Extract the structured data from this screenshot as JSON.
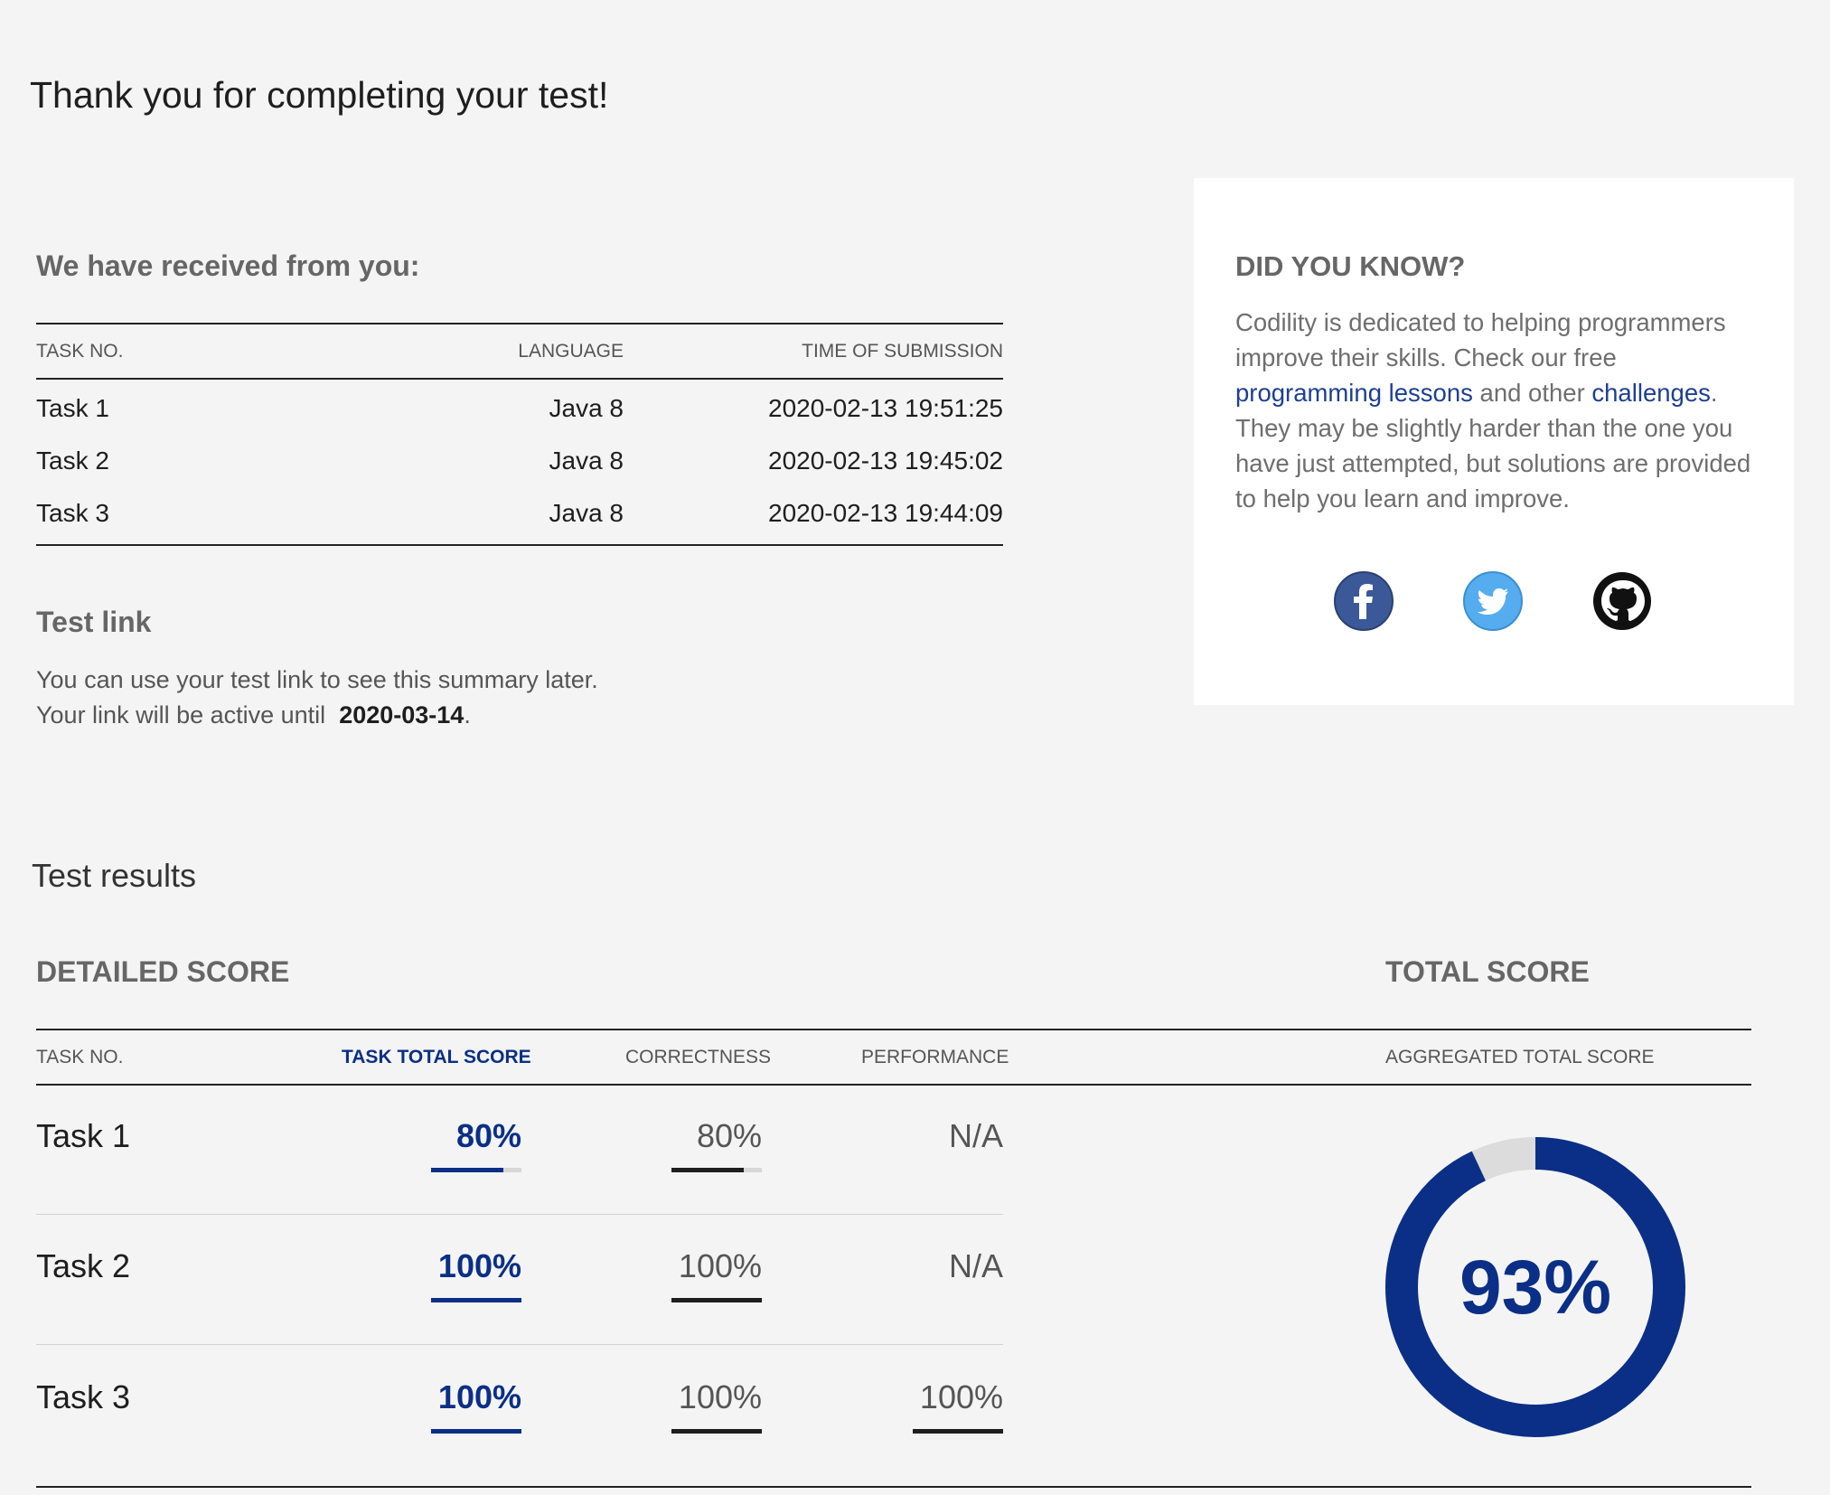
{
  "page": {
    "title": "Thank you for completing your test!"
  },
  "submissions": {
    "heading": "We have received from you:",
    "columns": [
      "TASK NO.",
      "LANGUAGE",
      "TIME OF SUBMISSION"
    ],
    "rows": [
      {
        "task": "Task 1",
        "language": "Java 8",
        "time": "2020-02-13 19:51:25"
      },
      {
        "task": "Task 2",
        "language": "Java 8",
        "time": "2020-02-13 19:45:02"
      },
      {
        "task": "Task 3",
        "language": "Java 8",
        "time": "2020-02-13 19:44:09"
      }
    ]
  },
  "test_link": {
    "heading": "Test link",
    "line1": "You can use your test link to see this summary later.",
    "line2_prefix": "Your link will be active until",
    "active_until": "2020-03-14",
    "line2_suffix": "."
  },
  "did_you_know": {
    "title": "DID YOU KNOW?",
    "text_part1": "Codility is dedicated to helping programmers improve their skills. Check our free",
    "link1": "programming lessons",
    "text_part2": "and other",
    "link2": "challenges",
    "text_part3": ". They may be slightly harder than the one you have just attempted, but solutions are provided to help you learn and improve.",
    "social": [
      {
        "name": "facebook-icon",
        "color": "#3b5998"
      },
      {
        "name": "twitter-icon",
        "color": "#55acee"
      },
      {
        "name": "github-icon",
        "color": "#111111"
      }
    ]
  },
  "results": {
    "title": "Test results",
    "detailed_heading": "DETAILED SCORE",
    "total_heading": "TOTAL SCORE",
    "columns": {
      "task": "TASK NO.",
      "total": "TASK TOTAL SCORE",
      "correctness": "CORRECTNESS",
      "performance": "PERFORMANCE",
      "aggregated": "AGGREGATED TOTAL SCORE"
    },
    "rows": [
      {
        "task": "Task 1",
        "total": "80%",
        "total_fraction": 0.8,
        "correctness": "80%",
        "correctness_fraction": 0.8,
        "performance": "N/A",
        "performance_fraction": null
      },
      {
        "task": "Task 2",
        "total": "100%",
        "total_fraction": 1.0,
        "correctness": "100%",
        "correctness_fraction": 1.0,
        "performance": "N/A",
        "performance_fraction": null
      },
      {
        "task": "Task 3",
        "total": "100%",
        "total_fraction": 1.0,
        "correctness": "100%",
        "correctness_fraction": 1.0,
        "performance": "100%",
        "performance_fraction": 1.0
      }
    ],
    "aggregated": {
      "label": "93%",
      "fraction": 0.93
    }
  },
  "colors": {
    "accent": "#0b2f86",
    "dark_bar": "#1e1e1e",
    "track": "#d7d7d7",
    "donut_track": "#dcdcdc"
  }
}
